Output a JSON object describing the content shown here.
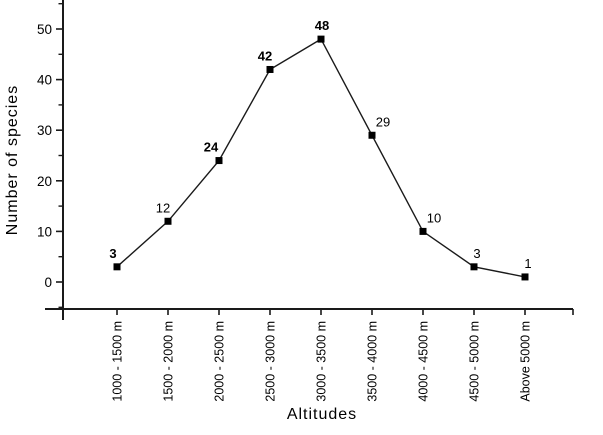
{
  "figure": {
    "background": "#ffffff",
    "line_color": "#1a1a1a",
    "marker_color": "#000000",
    "text_color": "#000000"
  },
  "chart_data": {
    "type": "line",
    "title": "",
    "xlabel": "Altitudes",
    "ylabel": "Number of species",
    "categories": [
      "1000 - 1500 m",
      "1500 - 2000 m",
      "2000 - 2500 m",
      "2500 - 3000 m",
      "3000 - 3500 m",
      "3500 - 4000 m",
      "4000 - 4500 m",
      "4500 - 5000 m",
      "Above 5000 m"
    ],
    "series": [
      {
        "name": "Number of species",
        "values": [
          3,
          12,
          24,
          42,
          48,
          29,
          10,
          3,
          1
        ]
      }
    ],
    "point_labels": [
      "3",
      "12",
      "24",
      "42",
      "48",
      "29",
      "10",
      "3",
      "1"
    ],
    "point_label_bold": [
      true,
      false,
      true,
      true,
      true,
      false,
      false,
      false,
      false
    ],
    "yticks_major": [
      0,
      10,
      20,
      30,
      40,
      50
    ],
    "yticks_minor": [
      -5,
      5,
      15,
      25,
      35,
      45,
      55
    ],
    "ylim": [
      -5.3,
      55.7
    ],
    "grid": false,
    "legend_position": "none",
    "marker": "filled-square",
    "tick_direction": "out"
  }
}
